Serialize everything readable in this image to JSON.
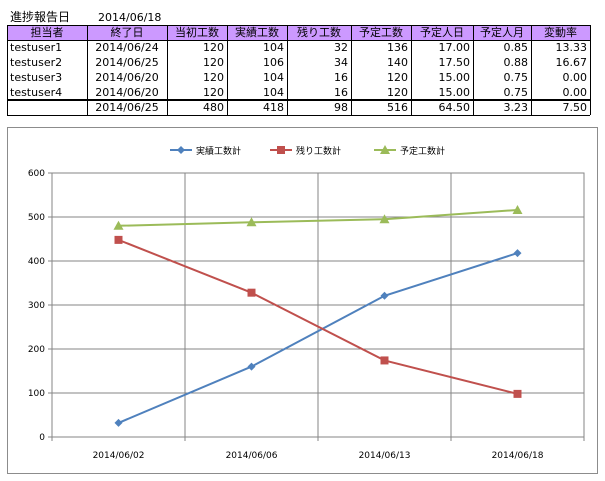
{
  "report": {
    "title": "進捗報告日",
    "date": "2014/06/18"
  },
  "table": {
    "headers": [
      "担当者",
      "終了日",
      "当初工数",
      "実績工数",
      "残り工数",
      "予定工数",
      "予定人日",
      "予定人月",
      "変動率"
    ],
    "rows": [
      [
        "testuser1",
        "2014/06/24",
        "120",
        "104",
        "32",
        "136",
        "17.00",
        "0.85",
        "13.33"
      ],
      [
        "testuser2",
        "2014/06/25",
        "120",
        "106",
        "34",
        "140",
        "17.50",
        "0.88",
        "16.67"
      ],
      [
        "testuser3",
        "2014/06/20",
        "120",
        "104",
        "16",
        "120",
        "15.00",
        "0.75",
        "0.00"
      ],
      [
        "testuser4",
        "2014/06/20",
        "120",
        "104",
        "16",
        "120",
        "15.00",
        "0.75",
        "0.00"
      ]
    ],
    "total": [
      "",
      "2014/06/25",
      "480",
      "418",
      "98",
      "516",
      "64.50",
      "3.23",
      "7.50"
    ]
  },
  "chart_data": {
    "type": "line",
    "categories": [
      "2014/06/02",
      "2014/06/06",
      "2014/06/13",
      "2014/06/18"
    ],
    "ylim": [
      0,
      600
    ],
    "yticks": [
      "0",
      "100",
      "200",
      "300",
      "400",
      "500",
      "600"
    ],
    "grid": true,
    "legend": "top",
    "series": [
      {
        "name": "実績工数計",
        "values": [
          32,
          160,
          321,
          418
        ],
        "color": "#4f81bd",
        "marker": "diamond"
      },
      {
        "name": "残り工数計",
        "values": [
          448,
          328,
          174,
          98
        ],
        "color": "#c0504d",
        "marker": "square"
      },
      {
        "name": "予定工数計",
        "values": [
          480,
          488,
          495,
          516
        ],
        "color": "#9bbb59",
        "marker": "triangle"
      }
    ]
  }
}
